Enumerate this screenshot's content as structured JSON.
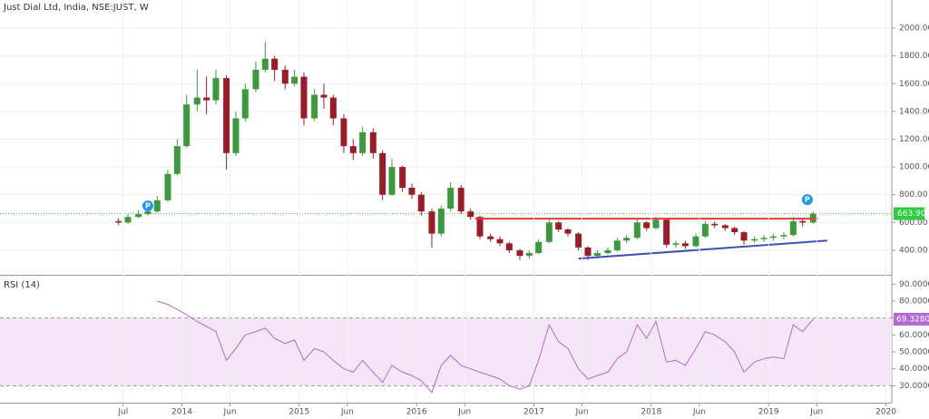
{
  "chart_data": [
    {
      "type": "candlestick",
      "title": "Just Dial Ltd, India, NSE:JUST, W",
      "x": [
        2013.46,
        2013.54,
        2013.63,
        2013.71,
        2013.79,
        2013.88,
        2013.96,
        2014.04,
        2014.13,
        2014.21,
        2014.29,
        2014.38,
        2014.46,
        2014.54,
        2014.63,
        2014.71,
        2014.79,
        2014.88,
        2014.96,
        2015.04,
        2015.13,
        2015.21,
        2015.29,
        2015.38,
        2015.46,
        2015.54,
        2015.63,
        2015.71,
        2015.79,
        2015.88,
        2015.96,
        2016.04,
        2016.13,
        2016.21,
        2016.29,
        2016.38,
        2016.46,
        2016.54,
        2016.63,
        2016.71,
        2016.79,
        2016.88,
        2016.96,
        2017.04,
        2017.13,
        2017.21,
        2017.29,
        2017.38,
        2017.46,
        2017.54,
        2017.63,
        2017.71,
        2017.79,
        2017.88,
        2017.96,
        2018.04,
        2018.13,
        2018.21,
        2018.29,
        2018.38,
        2018.46,
        2018.54,
        2018.63,
        2018.71,
        2018.79,
        2018.88,
        2018.96,
        2019.04,
        2019.13,
        2019.21,
        2019.29,
        2019.38
      ],
      "open": [
        610,
        600,
        640,
        660,
        680,
        760,
        950,
        1150,
        1450,
        1500,
        1480,
        1640,
        1100,
        1350,
        1560,
        1700,
        1780,
        1700,
        1600,
        1650,
        1350,
        1520,
        1500,
        1350,
        1150,
        1100,
        1250,
        1100,
        800,
        1000,
        850,
        800,
        680,
        520,
        700,
        850,
        680,
        640,
        500,
        480,
        450,
        400,
        360,
        380,
        460,
        600,
        550,
        520,
        420,
        360,
        380,
        400,
        470,
        490,
        600,
        560,
        620,
        440,
        450,
        430,
        500,
        590,
        580,
        560,
        530,
        470,
        480,
        490,
        500,
        510,
        610,
        600
      ],
      "high": [
        630,
        660,
        690,
        720,
        790,
        980,
        1200,
        1520,
        1700,
        1650,
        1700,
        1660,
        1400,
        1600,
        1760,
        1900,
        1800,
        1730,
        1700,
        1680,
        1560,
        1600,
        1520,
        1380,
        1200,
        1290,
        1280,
        1120,
        1060,
        1010,
        880,
        820,
        700,
        720,
        890,
        870,
        700,
        650,
        520,
        500,
        460,
        410,
        400,
        480,
        620,
        610,
        560,
        530,
        430,
        400,
        420,
        490,
        510,
        630,
        610,
        640,
        630,
        470,
        470,
        520,
        610,
        610,
        590,
        570,
        540,
        500,
        510,
        520,
        530,
        640,
        630,
        680
      ],
      "low": [
        580,
        590,
        630,
        650,
        670,
        750,
        940,
        1140,
        1400,
        1380,
        1450,
        980,
        1080,
        1330,
        1540,
        1680,
        1620,
        1560,
        1580,
        1300,
        1330,
        1420,
        1300,
        1100,
        1050,
        1080,
        1060,
        760,
        790,
        820,
        770,
        650,
        420,
        500,
        680,
        660,
        620,
        480,
        460,
        430,
        380,
        330,
        340,
        370,
        450,
        530,
        500,
        400,
        330,
        340,
        370,
        390,
        450,
        480,
        540,
        550,
        420,
        420,
        410,
        420,
        490,
        560,
        540,
        510,
        440,
        450,
        460,
        470,
        480,
        500,
        570,
        590
      ],
      "close": [
        600,
        640,
        660,
        680,
        760,
        950,
        1150,
        1450,
        1500,
        1480,
        1640,
        1100,
        1350,
        1560,
        1700,
        1780,
        1700,
        1600,
        1650,
        1350,
        1520,
        1500,
        1350,
        1150,
        1100,
        1250,
        1100,
        800,
        1000,
        850,
        800,
        680,
        520,
        700,
        850,
        680,
        640,
        500,
        480,
        450,
        400,
        360,
        380,
        460,
        600,
        550,
        520,
        420,
        360,
        380,
        400,
        470,
        490,
        600,
        560,
        620,
        440,
        450,
        430,
        500,
        590,
        580,
        560,
        530,
        470,
        480,
        490,
        500,
        510,
        610,
        600,
        663.9
      ],
      "up_color": "#3c9a3c",
      "down_color": "#9b1c28",
      "xlim": [
        2012.45,
        2020.05
      ],
      "ylim": [
        230,
        2085
      ],
      "yticks": [
        {
          "value": 400,
          "label": "400.00"
        },
        {
          "value": 600,
          "label": "600.00"
        },
        {
          "value": 800,
          "label": "800.00"
        },
        {
          "value": 1000,
          "label": "1000.00"
        },
        {
          "value": 1200,
          "label": "1200.00"
        },
        {
          "value": 1400,
          "label": "1400.00"
        },
        {
          "value": 1600,
          "label": "1600.00"
        },
        {
          "value": 1800,
          "label": "1800.00"
        },
        {
          "value": 2000,
          "label": "2000.00"
        }
      ],
      "grid": true,
      "last_label": {
        "value": 663.9,
        "label": "663.90"
      },
      "last_color": "#2ecc40",
      "trendlines": [
        {
          "color": "#e53935",
          "x": [
            2016.5,
            2019.42
          ],
          "y": [
            628,
            628
          ]
        },
        {
          "color": "#3f51b5",
          "x": [
            2017.38,
            2019.5
          ],
          "y": [
            340,
            470
          ]
        }
      ],
      "markers": [
        {
          "x": 2013.71,
          "y": 720,
          "label": "P"
        },
        {
          "x": 2019.33,
          "y": 765,
          "label": "P"
        }
      ],
      "marker_color": "#2196f3"
    },
    {
      "type": "line",
      "title": "RSI (14)",
      "x": [
        2013.46,
        2013.54,
        2013.63,
        2013.71,
        2013.79,
        2013.88,
        2013.96,
        2014.04,
        2014.13,
        2014.21,
        2014.29,
        2014.38,
        2014.46,
        2014.54,
        2014.63,
        2014.71,
        2014.79,
        2014.88,
        2014.96,
        2015.04,
        2015.13,
        2015.21,
        2015.29,
        2015.38,
        2015.46,
        2015.54,
        2015.63,
        2015.71,
        2015.79,
        2015.88,
        2015.96,
        2016.04,
        2016.13,
        2016.21,
        2016.29,
        2016.38,
        2016.46,
        2016.54,
        2016.63,
        2016.71,
        2016.79,
        2016.88,
        2016.96,
        2017.04,
        2017.13,
        2017.21,
        2017.29,
        2017.38,
        2017.46,
        2017.54,
        2017.63,
        2017.71,
        2017.79,
        2017.88,
        2017.96,
        2018.04,
        2018.13,
        2018.21,
        2018.29,
        2018.38,
        2018.46,
        2018.54,
        2018.63,
        2018.71,
        2018.79,
        2018.88,
        2018.96,
        2019.04,
        2019.13,
        2019.21,
        2019.29,
        2019.38
      ],
      "values": [
        null,
        null,
        null,
        null,
        80,
        78,
        75,
        72,
        68,
        65,
        62,
        45,
        52,
        60,
        62,
        64,
        58,
        55,
        57,
        45,
        52,
        50,
        45,
        40,
        38,
        45,
        38,
        32,
        42,
        38,
        36,
        33,
        26,
        42,
        48,
        42,
        40,
        38,
        36,
        34,
        30,
        28,
        30,
        45,
        66,
        56,
        52,
        40,
        34,
        36,
        38,
        46,
        50,
        66,
        58,
        68,
        44,
        45,
        42,
        52,
        62,
        60,
        56,
        50,
        38,
        44,
        46,
        47,
        46,
        66,
        62,
        69.328
      ],
      "color": "#b36ad0",
      "bands": [
        30,
        70
      ],
      "band_fill": "#f5e6f7",
      "xlim": [
        2012.45,
        2020.05
      ],
      "ylim": [
        20,
        95
      ],
      "yticks": [
        {
          "value": 30,
          "label": "30.0000"
        },
        {
          "value": 40,
          "label": "40.0000"
        },
        {
          "value": 50,
          "label": "50.0000"
        },
        {
          "value": 60,
          "label": "60.0000"
        },
        {
          "value": 70,
          "label": "70.0000"
        },
        {
          "value": 80,
          "label": "80.0000"
        },
        {
          "value": 90,
          "label": "90.0000"
        }
      ],
      "xticks": [
        {
          "value": 2013.5,
          "label": "Jul"
        },
        2014,
        {
          "value": 2014.41,
          "label": "Jun"
        },
        2015,
        {
          "value": 2015.41,
          "label": "Jun"
        },
        2016,
        {
          "value": 2016.41,
          "label": "Jun"
        },
        2017,
        {
          "value": 2017.41,
          "label": "Jun"
        },
        2018,
        {
          "value": 2018.41,
          "label": "Jun"
        },
        2019,
        {
          "value": 2019.41,
          "label": "Jun"
        },
        2020
      ],
      "last_label": {
        "value": 69.328,
        "label": "69.3280"
      }
    }
  ]
}
